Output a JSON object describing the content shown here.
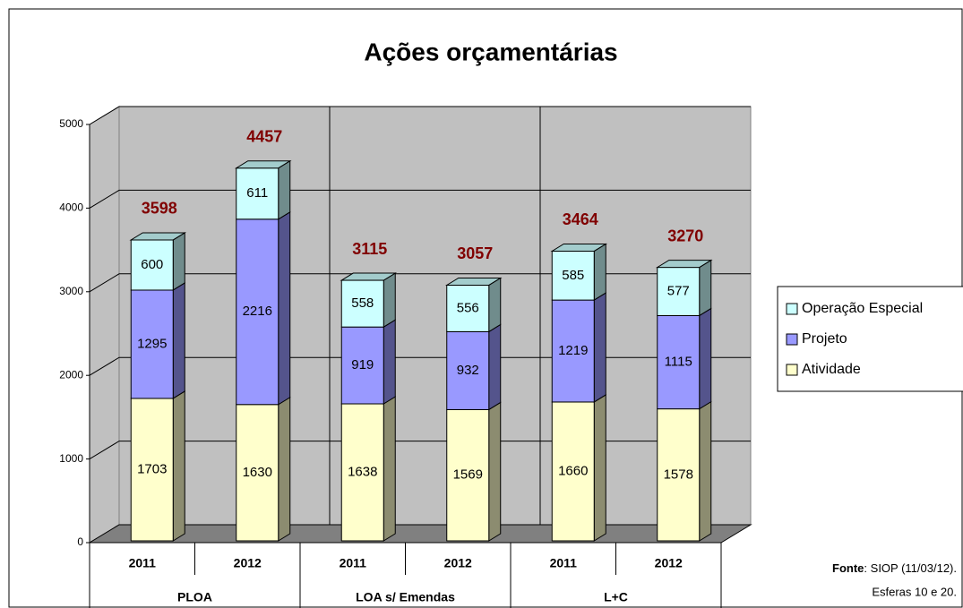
{
  "chart_data": {
    "type": "stacked-bar-3d",
    "title": "Ações orçamentárias",
    "categories": [
      "2011",
      "2012",
      "2011",
      "2012",
      "2011",
      "2012"
    ],
    "groups": [
      "PLOA",
      "LOA s/ Emendas",
      "L+C"
    ],
    "series": [
      {
        "name": "Atividade",
        "color": "#ffffcc",
        "values": [
          1703,
          1630,
          1638,
          1569,
          1660,
          1578
        ]
      },
      {
        "name": "Projeto",
        "color": "#9999ff",
        "values": [
          1295,
          2216,
          919,
          932,
          1219,
          1115
        ]
      },
      {
        "name": "Operação Especial",
        "color": "#ccffff",
        "values": [
          600,
          611,
          558,
          556,
          585,
          577
        ]
      }
    ],
    "totals": [
      3598,
      4457,
      3115,
      3057,
      3464,
      3270
    ],
    "totals_color": "#800000",
    "ylim": [
      0,
      5000
    ],
    "yticks": [
      0,
      1000,
      2000,
      3000,
      4000,
      5000
    ],
    "grid": true,
    "legend": "right",
    "source": {
      "label": "Fonte",
      "text": ": SIOP (11/03/12).",
      "line2": "Esferas 10 e 20."
    }
  }
}
